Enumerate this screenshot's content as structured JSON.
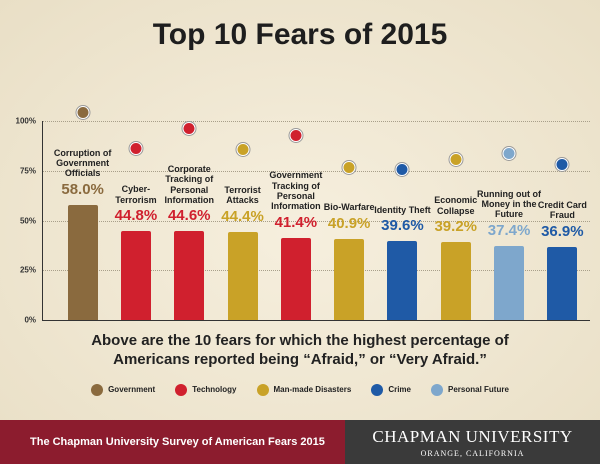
{
  "chart_data": {
    "type": "bar",
    "title": "Top 10 Fears of 2015",
    "categories": [
      "Corruption of Government Officials",
      "Cyber-Terrorism",
      "Corporate Tracking of Personal Information",
      "Terrorist Attacks",
      "Government Tracking of Personal Information",
      "Bio-Warfare",
      "Identity Theft",
      "Economic Collapse",
      "Running out of Money in the Future",
      "Credit Card Fraud"
    ],
    "values": [
      58.0,
      44.8,
      44.6,
      44.4,
      41.4,
      40.9,
      39.6,
      39.2,
      37.4,
      36.9
    ],
    "value_labels": [
      "58.0%",
      "44.8%",
      "44.6%",
      "44.4%",
      "41.4%",
      "40.9%",
      "39.6%",
      "39.2%",
      "37.4%",
      "36.9%"
    ],
    "colors": [
      "#8a6a3e",
      "#d0202e",
      "#d0202e",
      "#c9a227",
      "#d0202e",
      "#c9a227",
      "#1f5aa6",
      "#c9a227",
      "#7ea7cc",
      "#1f5aa6"
    ],
    "ylim": [
      0,
      100
    ],
    "yticks": [
      {
        "value": 0,
        "label": "0%"
      },
      {
        "value": 25,
        "label": "25%"
      },
      {
        "value": 50,
        "label": "50%"
      },
      {
        "value": 75,
        "label": "75%"
      },
      {
        "value": 100,
        "label": "100%"
      }
    ],
    "grid": true,
    "note": "Above are the 10 fears for which the highest percentage of Americans reported being “Afraid,” or “Very Afraid.”",
    "legend": [
      {
        "name": "Government",
        "color": "#8a6a3e"
      },
      {
        "name": "Technology",
        "color": "#d0202e"
      },
      {
        "name": "Man-made Disasters",
        "color": "#c9a227"
      },
      {
        "name": "Crime",
        "color": "#1f5aa6"
      },
      {
        "name": "Personal Future",
        "color": "#7ea7cc"
      }
    ]
  },
  "footer": {
    "survey": "The Chapman University Survey of American Fears 2015",
    "university": "CHAPMAN UNIVERSITY",
    "location": "ORANGE, CALIFORNIA"
  }
}
